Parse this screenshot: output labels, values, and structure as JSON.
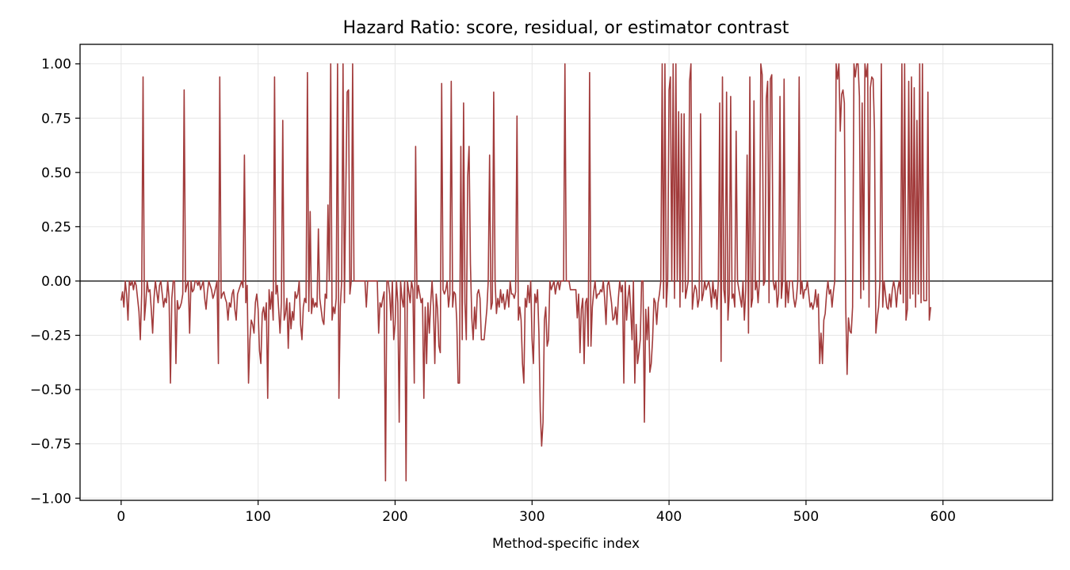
{
  "chart_data": {
    "type": "line",
    "title": "Hazard Ratio: score, residual, or estimator contrast",
    "xlabel": "Method-specific index",
    "ylabel": "",
    "xlim": [
      -30,
      680
    ],
    "ylim": [
      -1.01,
      1.09
    ],
    "xticks": [
      0,
      100,
      200,
      300,
      400,
      500,
      600
    ],
    "xtick_labels": [
      "0",
      "100",
      "200",
      "300",
      "400",
      "500",
      "600"
    ],
    "yticks": [
      -1.0,
      -0.75,
      -0.5,
      -0.25,
      0.0,
      0.25,
      0.5,
      0.75,
      1.0
    ],
    "ytick_labels": [
      "−1.00",
      "−0.75",
      "−0.50",
      "−0.25",
      "0.00",
      "0.25",
      "0.50",
      "0.75",
      "1.00"
    ],
    "grid": true,
    "reference_line_y": 0,
    "line_color": "#a23b3b",
    "series": [
      {
        "name": "",
        "x_start": 0,
        "x_step": 1,
        "values": [
          -0.09,
          -0.05,
          -0.12,
          0.0,
          -0.06,
          -0.18,
          0.0,
          -0.02,
          0.0,
          -0.04,
          0.0,
          -0.02,
          -0.08,
          -0.14,
          -0.27,
          -0.06,
          0.94,
          -0.18,
          -0.1,
          0.0,
          -0.05,
          -0.04,
          -0.13,
          -0.24,
          -0.08,
          0.0,
          -0.05,
          -0.1,
          -0.02,
          0.0,
          -0.06,
          -0.12,
          -0.08,
          -0.1,
          0.0,
          -0.08,
          -0.47,
          -0.08,
          0.0,
          0.0,
          -0.38,
          -0.09,
          -0.13,
          -0.12,
          -0.1,
          -0.06,
          0.88,
          -0.05,
          -0.02,
          0.0,
          -0.24,
          0.0,
          -0.05,
          -0.04,
          0.0,
          0.0,
          -0.02,
          0.0,
          -0.04,
          -0.02,
          0.0,
          -0.08,
          -0.13,
          -0.05,
          0.0,
          -0.02,
          -0.04,
          -0.08,
          -0.06,
          -0.03,
          0.0,
          -0.38,
          0.94,
          -0.08,
          -0.06,
          -0.05,
          -0.08,
          -0.1,
          -0.18,
          -0.1,
          -0.12,
          -0.06,
          -0.04,
          -0.13,
          -0.18,
          -0.06,
          -0.04,
          -0.02,
          0.0,
          -0.03,
          0.58,
          -0.1,
          -0.02,
          -0.47,
          -0.27,
          -0.18,
          -0.2,
          -0.24,
          -0.1,
          -0.06,
          -0.13,
          -0.32,
          -0.38,
          -0.15,
          -0.12,
          -0.18,
          -0.1,
          -0.54,
          -0.04,
          -0.13,
          -0.05,
          -0.18,
          0.94,
          -0.06,
          -0.02,
          -0.13,
          -0.24,
          -0.1,
          0.74,
          -0.18,
          -0.15,
          -0.08,
          -0.31,
          -0.1,
          -0.22,
          -0.14,
          -0.18,
          -0.05,
          -0.08,
          -0.06,
          0.0,
          -0.2,
          -0.27,
          -0.12,
          -0.08,
          -0.1,
          0.96,
          -0.14,
          0.32,
          -0.15,
          -0.08,
          -0.12,
          -0.1,
          -0.12,
          0.24,
          -0.08,
          -0.13,
          -0.18,
          -0.2,
          -0.06,
          -0.08,
          0.35,
          0.0,
          1.0,
          -0.18,
          -0.12,
          -0.15,
          -0.08,
          1.0,
          -0.54,
          -0.12,
          0.0,
          1.0,
          -0.1,
          0.4,
          0.87,
          0.88,
          -0.06,
          0.0,
          1.0,
          0.0,
          0.0,
          0.0,
          0.0,
          0.0,
          0.0,
          0.0,
          0.0,
          0.0,
          -0.12,
          0.0,
          0.0,
          0.0,
          0.0,
          0.0,
          0.0,
          0.0,
          0.0,
          -0.24,
          -0.1,
          -0.12,
          -0.08,
          -0.05,
          -0.92,
          0.0,
          0.0,
          -0.06,
          -0.18,
          0.0,
          -0.27,
          -0.2,
          0.0,
          -0.1,
          -0.65,
          0.0,
          -0.08,
          -0.12,
          0.0,
          -0.92,
          0.0,
          -0.05,
          -0.1,
          0.0,
          -0.04,
          -0.47,
          0.62,
          -0.08,
          -0.02,
          -0.06,
          -0.1,
          -0.08,
          -0.54,
          -0.12,
          -0.38,
          -0.1,
          -0.24,
          -0.1,
          0.0,
          -0.12,
          -0.38,
          -0.06,
          -0.13,
          -0.3,
          -0.33,
          0.91,
          -0.04,
          -0.06,
          -0.04,
          0.0,
          -0.12,
          -0.06,
          0.92,
          -0.12,
          -0.05,
          -0.06,
          -0.18,
          -0.47,
          -0.47,
          0.62,
          -0.27,
          0.82,
          -0.1,
          -0.27,
          0.48,
          0.62,
          0.08,
          -0.17,
          -0.27,
          -0.12,
          -0.22,
          -0.06,
          -0.04,
          -0.08,
          -0.27,
          -0.27,
          -0.27,
          -0.2,
          -0.13,
          0.0,
          0.58,
          -0.13,
          -0.1,
          0.87,
          0.0,
          -0.15,
          -0.08,
          -0.12,
          -0.04,
          -0.1,
          -0.06,
          -0.13,
          -0.09,
          -0.04,
          -0.12,
          0.0,
          -0.06,
          -0.06,
          -0.08,
          -0.05,
          0.76,
          -0.18,
          -0.12,
          -0.18,
          -0.38,
          -0.47,
          -0.08,
          -0.12,
          -0.02,
          -0.1,
          0.0,
          -0.27,
          -0.38,
          -0.06,
          -0.1,
          -0.04,
          -0.24,
          -0.6,
          -0.76,
          -0.65,
          -0.18,
          -0.12,
          -0.3,
          -0.27,
          0.0,
          -0.04,
          -0.02,
          0.0,
          -0.06,
          -0.02,
          0.0,
          -0.04,
          0.0,
          0.0,
          0.0,
          1.0,
          0.0,
          0.0,
          0.0,
          -0.04,
          -0.04,
          -0.04,
          -0.04,
          -0.04,
          -0.17,
          -0.06,
          -0.33,
          -0.13,
          -0.08,
          -0.38,
          -0.1,
          -0.08,
          -0.3,
          0.96,
          -0.3,
          -0.12,
          -0.05,
          0.0,
          -0.08,
          -0.06,
          -0.06,
          -0.04,
          -0.05,
          0.0,
          -0.08,
          -0.2,
          -0.02,
          0.0,
          -0.05,
          -0.1,
          -0.18,
          -0.17,
          -0.12,
          -0.2,
          -0.08,
          0.0,
          -0.05,
          -0.02,
          -0.47,
          0.0,
          -0.18,
          -0.08,
          -0.02,
          -0.13,
          -0.27,
          0.0,
          -0.47,
          -0.2,
          -0.38,
          -0.33,
          -0.27,
          0.0,
          0.0,
          -0.65,
          -0.13,
          -0.27,
          -0.12,
          -0.42,
          -0.38,
          -0.27,
          -0.08,
          -0.1,
          -0.2,
          -0.1,
          -0.06,
          0.0,
          1.0,
          -0.08,
          1.0,
          -0.12,
          0.0,
          0.88,
          0.94,
          0.0,
          1.0,
          -0.08,
          1.0,
          0.0,
          0.78,
          -0.12,
          0.77,
          -0.05,
          0.77,
          -0.08,
          -0.04,
          0.0,
          0.92,
          1.0,
          -0.13,
          -0.06,
          -0.02,
          -0.04,
          -0.12,
          -0.08,
          0.77,
          -0.09,
          -0.06,
          0.0,
          -0.04,
          -0.02,
          0.0,
          -0.04,
          -0.12,
          0.0,
          -0.08,
          -0.04,
          -0.13,
          0.0,
          0.82,
          -0.37,
          0.94,
          -0.04,
          -0.1,
          0.87,
          -0.18,
          -0.06,
          0.85,
          -0.08,
          -0.06,
          -0.12,
          0.69,
          0.0,
          -0.04,
          -0.08,
          -0.12,
          0.0,
          -0.18,
          -0.04,
          0.58,
          -0.24,
          0.94,
          -0.12,
          -0.08,
          0.83,
          -0.04,
          0.0,
          -0.1,
          0.0,
          1.0,
          0.95,
          -0.02,
          0.0,
          0.84,
          0.92,
          -0.1,
          0.93,
          0.95,
          0.0,
          -0.04,
          0.0,
          -0.12,
          -0.06,
          0.85,
          -0.08,
          0.0,
          0.93,
          -0.12,
          0.0,
          -0.1,
          0.0,
          0.0,
          0.0,
          -0.08,
          -0.12,
          -0.08,
          0.0,
          0.94,
          -0.06,
          0.0,
          -0.08,
          -0.04,
          -0.04,
          0.0,
          -0.06,
          -0.12,
          -0.1,
          -0.13,
          -0.1,
          -0.04,
          -0.12,
          -0.06,
          -0.38,
          -0.24,
          -0.38,
          -0.18,
          -0.15,
          -0.06,
          0.0,
          -0.06,
          -0.04,
          -0.12,
          -0.05,
          0.0,
          1.0,
          0.93,
          1.0,
          0.69,
          0.86,
          0.88,
          0.82,
          -0.12,
          -0.43,
          -0.17,
          -0.23,
          -0.24,
          -0.12,
          1.0,
          0.94,
          1.0,
          1.0,
          0.85,
          -0.08,
          0.82,
          -0.04,
          1.0,
          0.94,
          1.0,
          -0.12,
          0.89,
          0.94,
          0.93,
          0.69,
          -0.24,
          -0.17,
          -0.12,
          0.0,
          1.0,
          -0.12,
          0.0,
          -0.06,
          -0.12,
          -0.13,
          -0.06,
          -0.12,
          -0.04,
          0.0,
          -0.04,
          -0.12,
          -0.04,
          0.0,
          -0.06,
          1.0,
          -0.1,
          1.0,
          -0.18,
          -0.13,
          0.92,
          -0.08,
          0.94,
          -0.06,
          0.89,
          -0.12,
          0.74,
          -0.06,
          1.0,
          -0.1,
          1.0,
          -0.09,
          -0.09,
          -0.09,
          0.87,
          -0.18,
          -0.12
        ]
      }
    ]
  }
}
